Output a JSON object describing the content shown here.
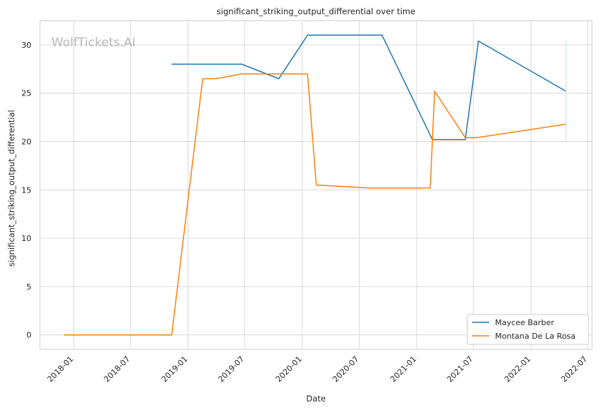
{
  "chart_data": {
    "type": "line",
    "title": "significant_striking_output_differential over time",
    "xlabel": "Date",
    "ylabel": "significant_striking_output_differential",
    "watermark": "WolfTickets.AI",
    "xlim": [
      "2017-09-15",
      "2022-07-15"
    ],
    "ylim": [
      -1.5,
      32.5
    ],
    "x_ticks": [
      "2018-01-01",
      "2018-07-01",
      "2019-01-01",
      "2019-07-01",
      "2020-01-01",
      "2020-07-01",
      "2021-01-01",
      "2021-07-01",
      "2022-01-01",
      "2022-07-01"
    ],
    "x_tick_labels": [
      "2018-01",
      "2018-07",
      "2019-01",
      "2019-07",
      "2020-01",
      "2020-07",
      "2021-01",
      "2021-07",
      "2022-01",
      "2022-07"
    ],
    "y_ticks": [
      0,
      5,
      10,
      15,
      20,
      25,
      30
    ],
    "y_tick_labels": [
      "0",
      "5",
      "10",
      "15",
      "20",
      "25",
      "30"
    ],
    "grid": true,
    "legend_position": "bottom-right",
    "series": [
      {
        "name": "Maycee Barber",
        "color": "#1f77b4",
        "points": [
          {
            "x": "2018-11-10",
            "y": 28.0
          },
          {
            "x": "2019-06-22",
            "y": 28.0
          },
          {
            "x": "2019-10-18",
            "y": 26.5
          },
          {
            "x": "2020-01-18",
            "y": 31.0
          },
          {
            "x": "2020-09-12",
            "y": 31.0
          },
          {
            "x": "2021-02-20",
            "y": 20.2
          },
          {
            "x": "2021-06-05",
            "y": 20.2
          },
          {
            "x": "2021-07-17",
            "y": 30.4
          },
          {
            "x": "2022-04-23",
            "y": 25.2
          }
        ]
      },
      {
        "name": "Montana De La Rosa",
        "color": "#ff7f0e",
        "points": [
          {
            "x": "2017-12-01",
            "y": 0.0
          },
          {
            "x": "2018-11-10",
            "y": 0.0
          },
          {
            "x": "2019-02-17",
            "y": 26.5
          },
          {
            "x": "2019-03-30",
            "y": 26.5
          },
          {
            "x": "2019-06-22",
            "y": 27.0
          },
          {
            "x": "2020-01-18",
            "y": 27.0
          },
          {
            "x": "2020-02-15",
            "y": 15.5
          },
          {
            "x": "2020-08-01",
            "y": 15.2
          },
          {
            "x": "2021-02-13",
            "y": 15.2
          },
          {
            "x": "2021-02-27",
            "y": 25.2
          },
          {
            "x": "2021-06-05",
            "y": 20.4
          },
          {
            "x": "2021-07-10",
            "y": 20.4
          },
          {
            "x": "2022-04-23",
            "y": 21.8
          }
        ]
      }
    ]
  }
}
